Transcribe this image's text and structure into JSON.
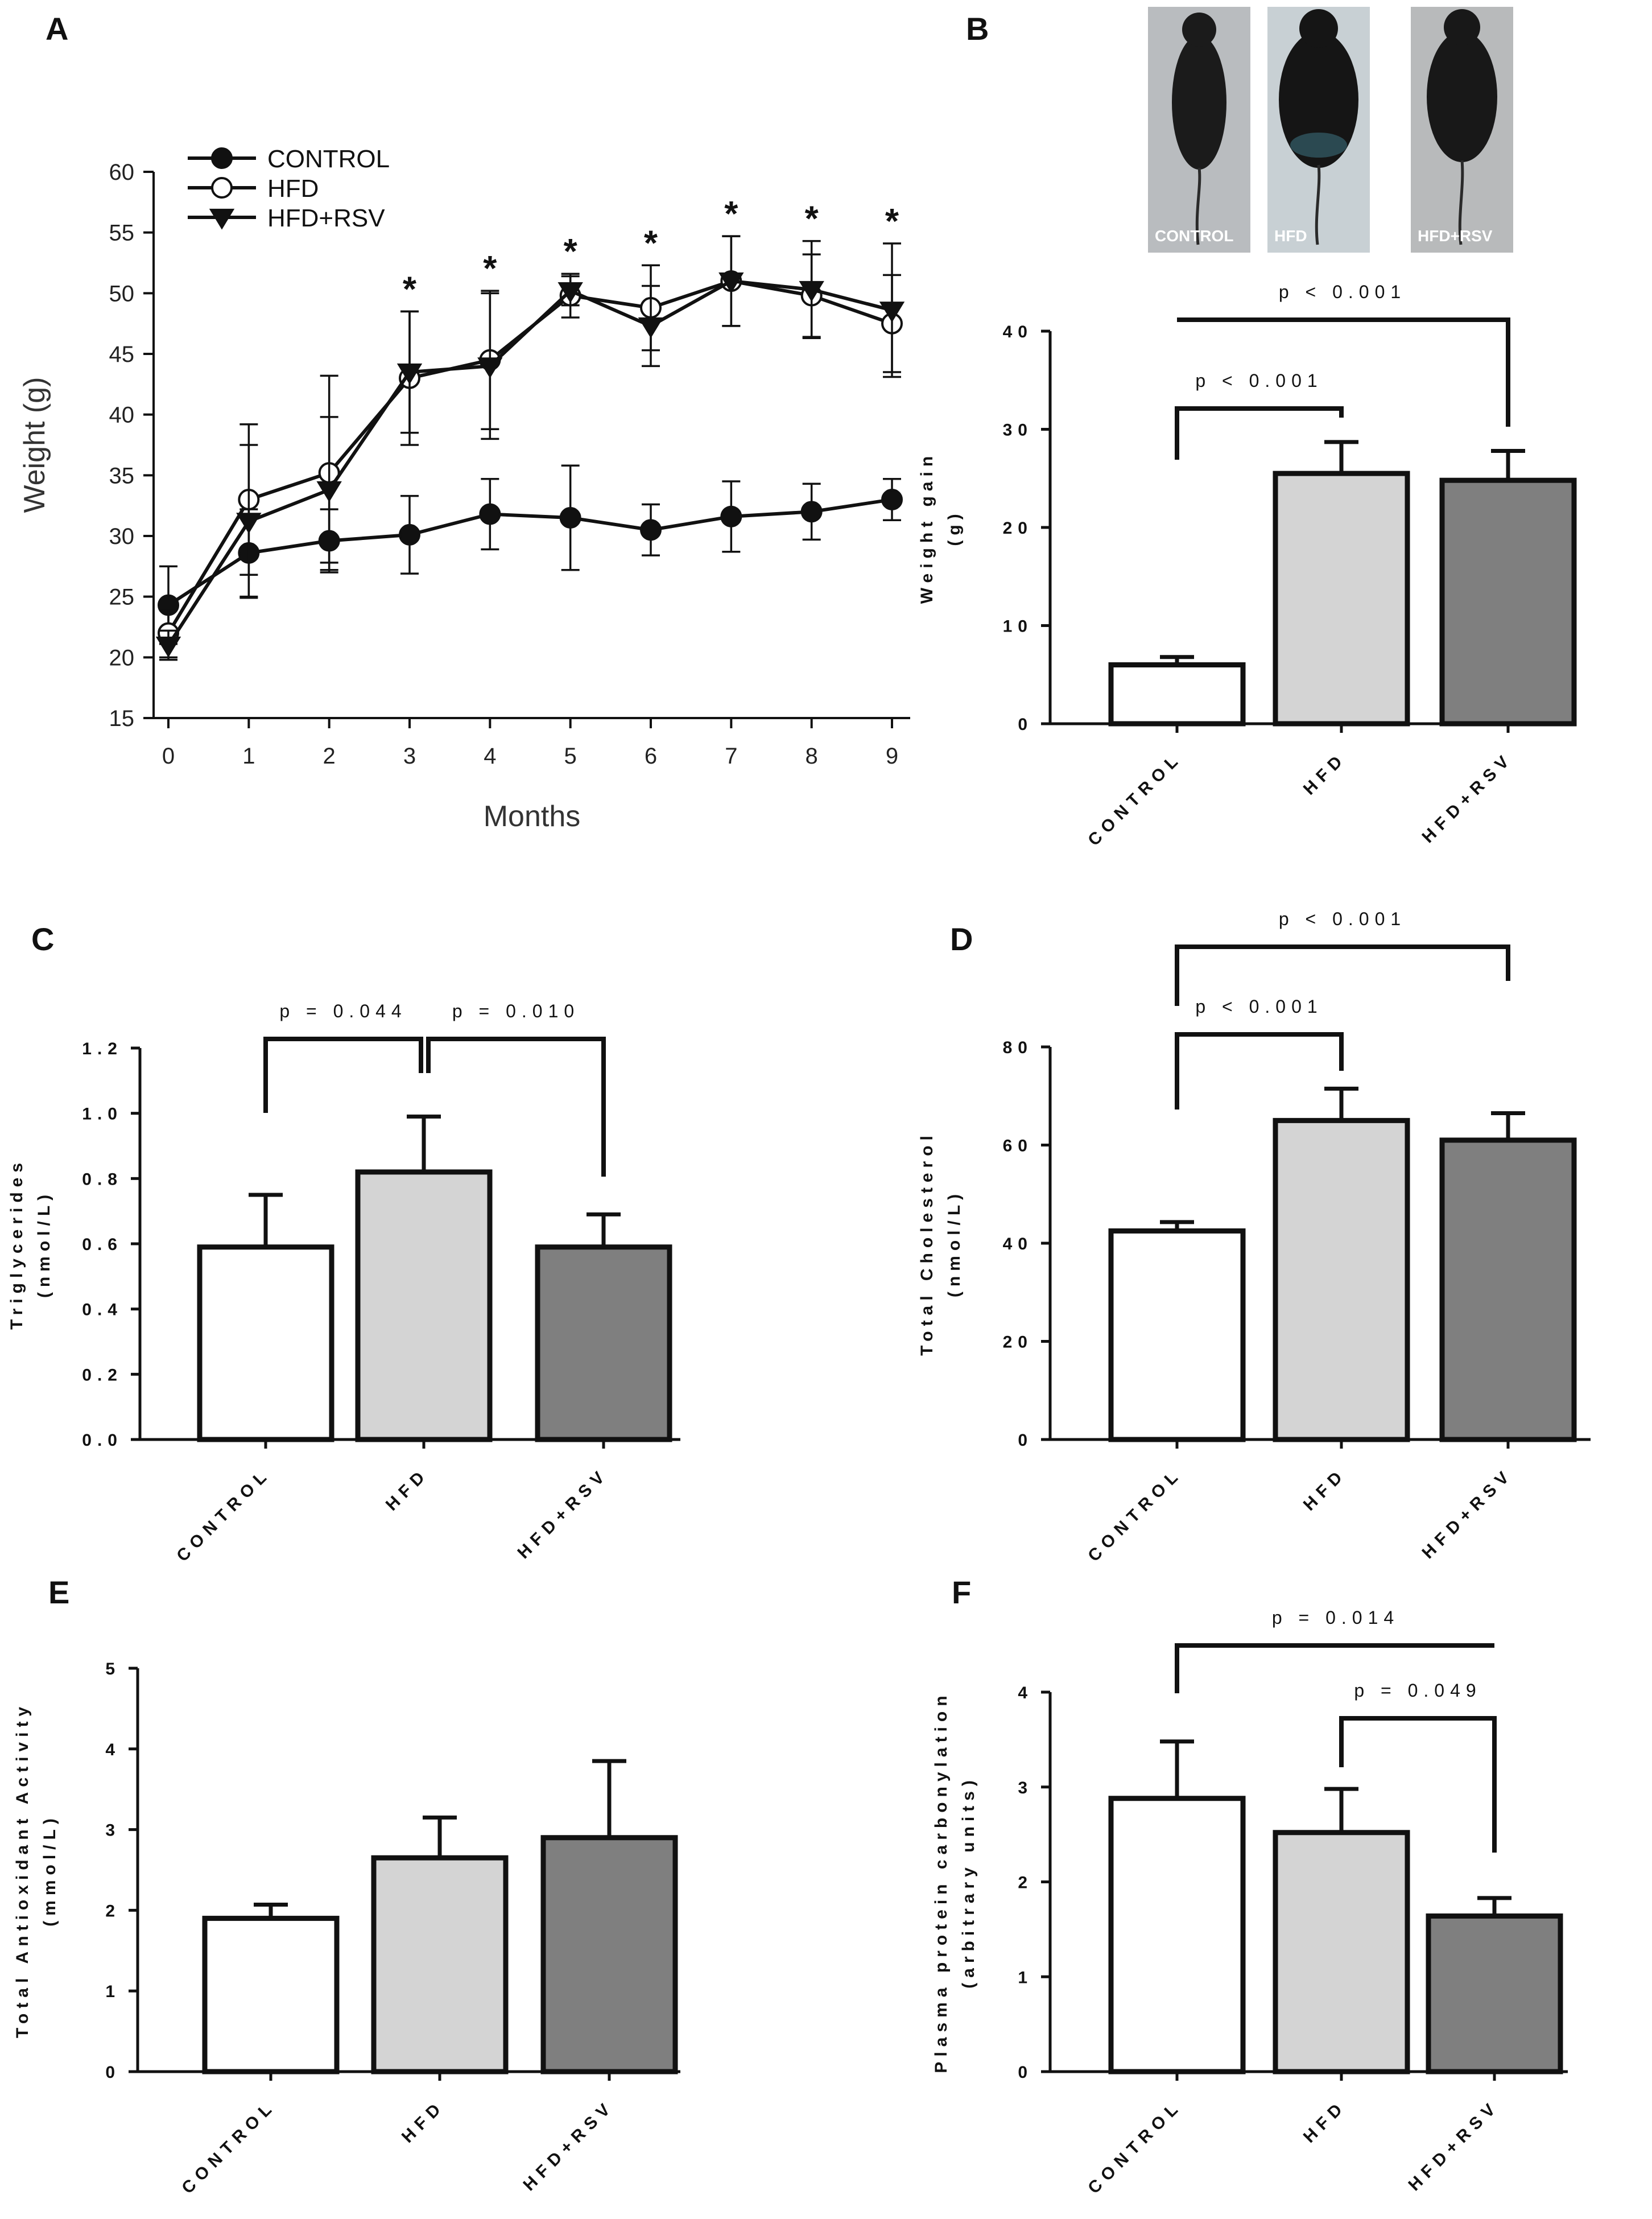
{
  "chart_data": [
    {
      "panel": "A",
      "type": "line",
      "xlabel": "Months",
      "ylabel": "Weight (g)",
      "x": [
        0,
        1,
        2,
        3,
        4,
        5,
        6,
        7,
        8,
        9
      ],
      "xlim": [
        0,
        9
      ],
      "ylim": [
        15,
        60
      ],
      "yticks": [
        15,
        20,
        25,
        30,
        35,
        40,
        45,
        50,
        55,
        60
      ],
      "legend": {
        "position": "top-left",
        "entries": [
          "CONTROL",
          "HFD",
          "HFD+RSV"
        ]
      },
      "series": [
        {
          "name": "CONTROL",
          "marker": "filled-circle",
          "values": [
            24.3,
            28.6,
            29.6,
            30.1,
            31.8,
            31.5,
            30.5,
            31.6,
            32.0,
            33.0
          ],
          "error": [
            3.2,
            3.6,
            2.6,
            3.2,
            2.9,
            4.3,
            2.1,
            2.9,
            2.3,
            1.7
          ]
        },
        {
          "name": "HFD",
          "marker": "open-circle",
          "values": [
            22.0,
            33.0,
            35.2,
            43.0,
            44.5,
            49.8,
            48.8,
            51.0,
            49.8,
            47.5
          ],
          "error": [
            2.0,
            6.2,
            8.0,
            5.5,
            5.7,
            1.8,
            3.5,
            3.7,
            3.4,
            4.0
          ]
        },
        {
          "name": "HFD+RSV",
          "marker": "filled-triangle-down",
          "values": [
            21.0,
            31.2,
            33.8,
            43.5,
            44.0,
            50.2,
            47.3,
            51.0,
            50.3,
            48.6
          ],
          "error": [
            1.2,
            6.3,
            6.0,
            5.0,
            6.0,
            1.2,
            3.3,
            3.7,
            4.0,
            5.5
          ]
        }
      ],
      "significance": [
        3,
        4,
        5,
        6,
        7,
        8,
        9
      ],
      "significance_mark": "*"
    },
    {
      "panel": "B",
      "type": "bar",
      "categories": [
        "CONTROL",
        "HFD",
        "HFD+RSV"
      ],
      "values": [
        6.0,
        25.5,
        24.8
      ],
      "error": [
        0.8,
        3.2,
        3.0
      ],
      "ylabel": "Weight gain (g)",
      "ylim": [
        0,
        40
      ],
      "yticks": [
        0,
        10,
        20,
        30,
        40
      ],
      "comparisons": [
        {
          "from": "CONTROL",
          "to": "HFD",
          "label": "p < 0.001"
        },
        {
          "from": "CONTROL",
          "to": "HFD+RSV",
          "label": "p < 0.001"
        }
      ],
      "photo_labels": [
        "CONTROL",
        "HFD",
        "HFD+RSV"
      ]
    },
    {
      "panel": "C",
      "type": "bar",
      "categories": [
        "CONTROL",
        "HFD",
        "HFD+RSV"
      ],
      "values": [
        0.59,
        0.82,
        0.59
      ],
      "error": [
        0.16,
        0.17,
        0.1
      ],
      "ylabel": "Triglycerides (nmol/L)",
      "ylim": [
        0,
        1.2
      ],
      "yticks": [
        0.0,
        0.2,
        0.4,
        0.6,
        0.8,
        1.0,
        1.2
      ],
      "ytick_labels": [
        "0.0",
        "0.2",
        "0.4",
        "0.6",
        "0.8",
        "1.0",
        "1.2"
      ],
      "comparisons": [
        {
          "from": "CONTROL",
          "to": "HFD",
          "label": "p = 0.044"
        },
        {
          "from": "HFD",
          "to": "HFD+RSV",
          "label": "p = 0.010"
        }
      ]
    },
    {
      "panel": "D",
      "type": "bar",
      "categories": [
        "CONTROL",
        "HFD",
        "HFD+RSV"
      ],
      "values": [
        42.5,
        65.0,
        61.0
      ],
      "error": [
        1.8,
        6.5,
        5.5
      ],
      "ylabel": "Total Cholesterol (nmol/L)",
      "ylim": [
        0,
        80
      ],
      "yticks": [
        0,
        20,
        40,
        60,
        80
      ],
      "comparisons": [
        {
          "from": "CONTROL",
          "to": "HFD",
          "label": "p < 0.001"
        },
        {
          "from": "CONTROL",
          "to": "HFD+RSV",
          "label": "p < 0.001"
        }
      ]
    },
    {
      "panel": "E",
      "type": "bar",
      "categories": [
        "CONTROL",
        "HFD",
        "HFD+RSV"
      ],
      "values": [
        1.9,
        2.65,
        2.9
      ],
      "error": [
        0.17,
        0.5,
        0.95
      ],
      "ylabel": "Total Antioxidant Activity (mmol/L)",
      "ylim": [
        0,
        5
      ],
      "yticks": [
        0,
        1,
        2,
        3,
        4,
        5
      ],
      "comparisons": []
    },
    {
      "panel": "F",
      "type": "bar",
      "categories": [
        "CONTROL",
        "HFD",
        "HFD+RSV"
      ],
      "values": [
        2.88,
        2.52,
        1.64
      ],
      "error": [
        0.6,
        0.46,
        0.19
      ],
      "ylabel": "Plasma protein carbonylation (arbitrary units)",
      "ylim": [
        0,
        4
      ],
      "yticks": [
        0,
        1,
        2,
        3,
        4
      ],
      "comparisons": [
        {
          "from": "CONTROL",
          "to": "HFD+RSV",
          "label": "p = 0.014"
        },
        {
          "from": "HFD",
          "to": "HFD+RSV",
          "label": "p = 0.049"
        }
      ]
    }
  ],
  "colors": {
    "axis": "#111111",
    "bars": [
      "#ffffff",
      "#d4d4d4",
      "#7f7f7f"
    ],
    "line": "#111111"
  }
}
